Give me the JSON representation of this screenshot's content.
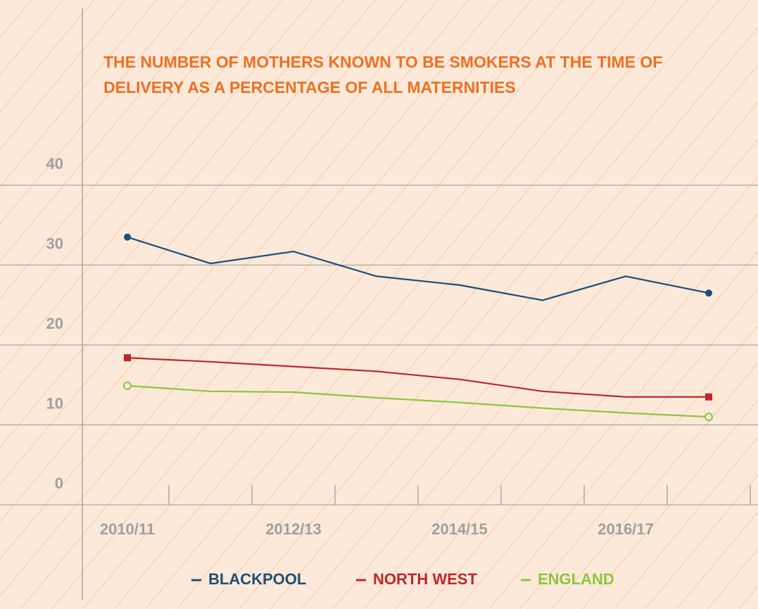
{
  "chart_data": {
    "type": "line",
    "title": "THE NUMBER OF MOTHERS KNOWN TO BE SMOKERS AT THE TIME OF DELIVERY AS A PERCENTAGE OF ALL MATERNITIES",
    "categories": [
      "2010/11",
      null,
      "2012/13",
      null,
      "2014/15",
      null,
      "2016/17",
      null
    ],
    "series": [
      {
        "name": "BLACKPOOL",
        "color": "#1f4e79",
        "marker": "filled-circle",
        "values": [
          33.5,
          30.2,
          31.7,
          28.6,
          27.5,
          25.6,
          28.6,
          26.5
        ]
      },
      {
        "name": "NORTH WEST",
        "color": "#c0272d",
        "marker": "filled-square",
        "values": [
          18.4,
          17.9,
          17.3,
          16.7,
          15.7,
          14.2,
          13.5,
          13.5
        ]
      },
      {
        "name": "ENGLAND",
        "color": "#8dc63f",
        "marker": "hollow-circle",
        "values": [
          14.9,
          14.2,
          14.1,
          13.4,
          12.8,
          12.1,
          11.5,
          11.0
        ]
      }
    ],
    "ylim": [
      0,
      40
    ],
    "yticks": [
      0,
      10,
      20,
      30,
      40
    ],
    "grid": true,
    "legend": "bottom"
  }
}
